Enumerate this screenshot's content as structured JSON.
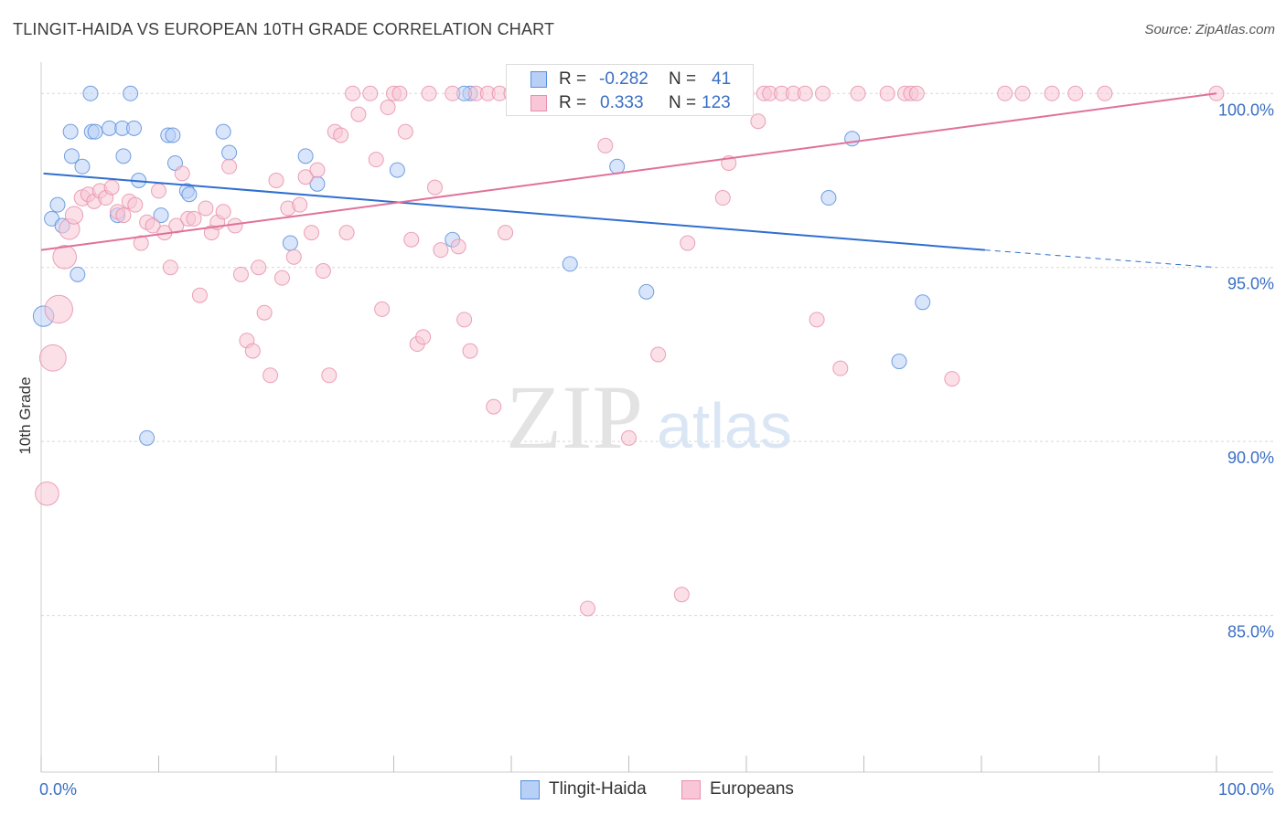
{
  "header": {
    "title": "TLINGIT-HAIDA VS EUROPEAN 10TH GRADE CORRELATION CHART",
    "source": "Source: ZipAtlas.com"
  },
  "watermark": {
    "zip": "ZIP",
    "atlas": "atlas"
  },
  "stats": {
    "r_label": "R =",
    "n_label": "N =",
    "rows": [
      {
        "series": "Tlingit-Haida",
        "r": "-0.282",
        "n": "41"
      },
      {
        "series": "Europeans",
        "r": "0.333",
        "n": "123"
      }
    ]
  },
  "colors": {
    "tlingit_fill": "#b8d0f5",
    "tlingit_stroke": "#5a8fdb",
    "tlingit_line": "#2f6fcf",
    "european_fill": "#f8c6d6",
    "european_stroke": "#e890ad",
    "european_line": "#e0719a",
    "axis_label": "#3a6fc4",
    "grid": "#d8d8d8"
  },
  "chart_data": {
    "type": "scatter",
    "title": "TLINGIT-HAIDA VS EUROPEAN 10TH GRADE CORRELATION CHART",
    "xlabel": "",
    "ylabel": "10th Grade",
    "xlim": [
      0,
      100
    ],
    "ylim": [
      80.5,
      100.9
    ],
    "x_tick_labels": [
      "0.0%",
      "100.0%"
    ],
    "y_ticks": [
      85,
      90,
      95,
      100
    ],
    "y_tick_labels": [
      "85.0%",
      "90.0%",
      "95.0%",
      "100.0%"
    ],
    "grid": true,
    "legend_position": "bottom",
    "series": [
      {
        "name": "Tlingit-Haida",
        "trend": {
          "x0": 0.2,
          "y0": 97.7,
          "x1": 80.3,
          "y1": 95.5,
          "dashed_to_x": 100,
          "dashed_to_y": 95.0
        },
        "points": [
          [
            4.2,
            100,
            1
          ],
          [
            7.6,
            100,
            1
          ],
          [
            0.9,
            96.4,
            1
          ],
          [
            1.4,
            96.8,
            1
          ],
          [
            1.8,
            96.2,
            1
          ],
          [
            2.5,
            98.9,
            1
          ],
          [
            2.6,
            98.2,
            1
          ],
          [
            3.5,
            97.9,
            1
          ],
          [
            3.1,
            94.8,
            1
          ],
          [
            4.3,
            98.9,
            1
          ],
          [
            4.6,
            98.9,
            1
          ],
          [
            5.8,
            99,
            1
          ],
          [
            7.0,
            98.2,
            1
          ],
          [
            6.9,
            99,
            1
          ],
          [
            7.9,
            99,
            1
          ],
          [
            8.3,
            97.5,
            1
          ],
          [
            6.5,
            96.5,
            1
          ],
          [
            10.2,
            96.5,
            1
          ],
          [
            10.8,
            98.8,
            1
          ],
          [
            11.2,
            98.8,
            1
          ],
          [
            11.4,
            98.0,
            1
          ],
          [
            12.4,
            97.2,
            1
          ],
          [
            12.6,
            97.1,
            1
          ],
          [
            15.5,
            98.9,
            1
          ],
          [
            16.0,
            98.3,
            1
          ],
          [
            0.2,
            93.6,
            1.4
          ],
          [
            9.0,
            90.1,
            1
          ],
          [
            21.2,
            95.7,
            1
          ],
          [
            22.5,
            98.2,
            1
          ],
          [
            23.5,
            97.4,
            1
          ],
          [
            30.3,
            97.8,
            1
          ],
          [
            35.0,
            95.8,
            1
          ],
          [
            36.5,
            100,
            1
          ],
          [
            45.0,
            95.1,
            1
          ],
          [
            49.0,
            97.9,
            1
          ],
          [
            51.5,
            94.3,
            1
          ],
          [
            67.0,
            97.0,
            1
          ],
          [
            69.0,
            98.7,
            1
          ],
          [
            75.0,
            94.0,
            1
          ],
          [
            73.0,
            92.3,
            1
          ],
          [
            36.0,
            100,
            1
          ]
        ]
      },
      {
        "name": "Europeans",
        "trend": {
          "x0": 0,
          "y0": 95.5,
          "x1": 100,
          "y1": 100
        },
        "points": [
          [
            0.5,
            88.5,
            1.6
          ],
          [
            1.0,
            92.4,
            1.8
          ],
          [
            1.5,
            93.8,
            1.9
          ],
          [
            2.0,
            95.3,
            1.6
          ],
          [
            2.4,
            96.1,
            1.4
          ],
          [
            2.8,
            96.5,
            1.2
          ],
          [
            3.5,
            97.0,
            1.1
          ],
          [
            4.0,
            97.1,
            1
          ],
          [
            4.5,
            96.9,
            1
          ],
          [
            5.0,
            97.2,
            1
          ],
          [
            5.5,
            97.0,
            1
          ],
          [
            6.0,
            97.3,
            1
          ],
          [
            6.5,
            96.6,
            1
          ],
          [
            7.0,
            96.5,
            1
          ],
          [
            7.5,
            96.9,
            1
          ],
          [
            8.0,
            96.8,
            1
          ],
          [
            8.5,
            95.7,
            1
          ],
          [
            9.0,
            96.3,
            1
          ],
          [
            9.5,
            96.2,
            1
          ],
          [
            10.0,
            97.2,
            1
          ],
          [
            10.5,
            96.0,
            1
          ],
          [
            11.0,
            95.0,
            1
          ],
          [
            11.5,
            96.2,
            1
          ],
          [
            12.0,
            97.7,
            1
          ],
          [
            12.5,
            96.4,
            1
          ],
          [
            13.0,
            96.4,
            1
          ],
          [
            13.5,
            94.2,
            1
          ],
          [
            14.0,
            96.7,
            1
          ],
          [
            14.5,
            96.0,
            1
          ],
          [
            15.0,
            96.3,
            1
          ],
          [
            15.5,
            96.6,
            1
          ],
          [
            16.0,
            97.9,
            1
          ],
          [
            16.5,
            96.2,
            1
          ],
          [
            17.0,
            94.8,
            1
          ],
          [
            17.5,
            92.9,
            1
          ],
          [
            18.0,
            92.6,
            1
          ],
          [
            18.5,
            95.0,
            1
          ],
          [
            19.0,
            93.7,
            1
          ],
          [
            19.5,
            91.9,
            1
          ],
          [
            20.0,
            97.5,
            1
          ],
          [
            20.5,
            94.7,
            1
          ],
          [
            21.0,
            96.7,
            1
          ],
          [
            21.5,
            95.3,
            1
          ],
          [
            22.0,
            96.8,
            1
          ],
          [
            22.5,
            97.6,
            1
          ],
          [
            23.0,
            96.0,
            1
          ],
          [
            23.5,
            97.8,
            1
          ],
          [
            24.0,
            94.9,
            1
          ],
          [
            24.5,
            91.9,
            1
          ],
          [
            25.0,
            98.9,
            1
          ],
          [
            25.5,
            98.8,
            1
          ],
          [
            26.0,
            96.0,
            1
          ],
          [
            26.5,
            100,
            1
          ],
          [
            27.0,
            99.4,
            1
          ],
          [
            28.0,
            100,
            1
          ],
          [
            28.5,
            98.1,
            1
          ],
          [
            29.0,
            93.8,
            1
          ],
          [
            29.5,
            99.6,
            1
          ],
          [
            30.0,
            100,
            1
          ],
          [
            31.0,
            98.9,
            1
          ],
          [
            31.5,
            95.8,
            1
          ],
          [
            32.0,
            92.8,
            1
          ],
          [
            32.5,
            93.0,
            1
          ],
          [
            33.0,
            100,
            1
          ],
          [
            33.5,
            97.3,
            1
          ],
          [
            34.0,
            95.5,
            1
          ],
          [
            35.0,
            100,
            1
          ],
          [
            35.5,
            95.6,
            1
          ],
          [
            36.0,
            93.5,
            1
          ],
          [
            36.5,
            92.6,
            1
          ],
          [
            37.0,
            100,
            1
          ],
          [
            38.0,
            100,
            1
          ],
          [
            38.5,
            91.0,
            1
          ],
          [
            39.0,
            100,
            1
          ],
          [
            39.5,
            96.0,
            1
          ],
          [
            40.0,
            100,
            1
          ],
          [
            41.0,
            100,
            1
          ],
          [
            42.0,
            100,
            1
          ],
          [
            43.0,
            100,
            1
          ],
          [
            44.0,
            100,
            1
          ],
          [
            45.0,
            100,
            1
          ],
          [
            46.0,
            100,
            1
          ],
          [
            46.5,
            85.2,
            1
          ],
          [
            47.0,
            100,
            1
          ],
          [
            48.0,
            98.5,
            1
          ],
          [
            49.0,
            100,
            1
          ],
          [
            50.0,
            90.1,
            1
          ],
          [
            51.0,
            100,
            1
          ],
          [
            52.0,
            100,
            1
          ],
          [
            52.5,
            92.5,
            1
          ],
          [
            53.0,
            100,
            1
          ],
          [
            54.0,
            100,
            1
          ],
          [
            54.5,
            85.6,
            1
          ],
          [
            55.0,
            95.7,
            1
          ],
          [
            56.0,
            100,
            1
          ],
          [
            57.0,
            100,
            1
          ],
          [
            58.0,
            97.0,
            1
          ],
          [
            58.5,
            98.0,
            1
          ],
          [
            60.0,
            100,
            1
          ],
          [
            61.0,
            99.2,
            1
          ],
          [
            61.5,
            100,
            1
          ],
          [
            62.0,
            100,
            1
          ],
          [
            63.0,
            100,
            1
          ],
          [
            64.0,
            100,
            1
          ],
          [
            65.0,
            100,
            1
          ],
          [
            66.0,
            93.5,
            1
          ],
          [
            68.0,
            92.1,
            1
          ],
          [
            69.5,
            100,
            1
          ],
          [
            72.0,
            100,
            1
          ],
          [
            73.5,
            100,
            1
          ],
          [
            74.0,
            100,
            1
          ],
          [
            74.5,
            100,
            1
          ],
          [
            77.5,
            91.8,
            1
          ],
          [
            82.0,
            100,
            1
          ],
          [
            83.5,
            100,
            1
          ],
          [
            86.0,
            100,
            1
          ],
          [
            88.0,
            100,
            1
          ],
          [
            90.5,
            100,
            1
          ],
          [
            100.0,
            100,
            1
          ],
          [
            59.0,
            100,
            1
          ],
          [
            66.5,
            100,
            1
          ],
          [
            30.5,
            100,
            1
          ],
          [
            44.5,
            100,
            1
          ]
        ]
      }
    ]
  }
}
